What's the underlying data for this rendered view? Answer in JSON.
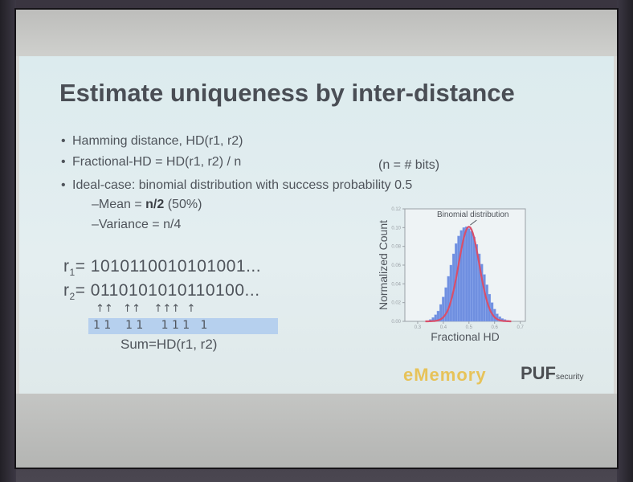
{
  "slide": {
    "title": "Estimate uniqueness by inter-distance",
    "bullets": {
      "hamming": "Hamming distance, HD(r1, r2)",
      "fractional": "Fractional-HD = HD(r1, r2) / n",
      "fractional_note": "(n = # bits)",
      "ideal": "Ideal-case: binomial distribution with success probability 0.5",
      "mean_prefix": "–Mean = ",
      "mean_bold": "n/2",
      "mean_suffix": "  (50%)",
      "variance": "–Variance = n/4"
    },
    "r1": {
      "label": "r",
      "sub": "1",
      "value": "= 1010110010101001..."
    },
    "r2": {
      "label": "r",
      "sub": "2",
      "value": "= 0110101010110100..."
    },
    "arrows": "↑↑   ↑↑    ↑↑↑  ↑",
    "ones": "1 1    1 1     1 1 1   1",
    "sum_label": "Sum=HD(r1, r2)",
    "logos": {
      "emem": "eMemory",
      "puf": "PUF",
      "puf_small": "security"
    }
  },
  "chart_data": {
    "type": "bar",
    "title": "",
    "annotation": "Binomial distribution",
    "xlabel": "Fractional HD",
    "ylabel": "Normalized Count",
    "xlim": [
      0.25,
      0.72
    ],
    "ylim": [
      0,
      0.12
    ],
    "xticks": [
      "0.3",
      "0.4",
      "0.5",
      "0.6",
      "0.7"
    ],
    "yticks": [
      "0.00",
      "0.02",
      "0.04",
      "0.06",
      "0.08",
      "0.10",
      "0.12"
    ],
    "x": [
      0.35,
      0.36,
      0.37,
      0.38,
      0.39,
      0.4,
      0.41,
      0.42,
      0.43,
      0.44,
      0.45,
      0.46,
      0.47,
      0.48,
      0.49,
      0.5,
      0.51,
      0.52,
      0.53,
      0.54,
      0.55,
      0.56,
      0.57,
      0.58,
      0.59,
      0.6,
      0.61,
      0.62,
      0.63,
      0.64,
      0.65
    ],
    "values": [
      0.002,
      0.004,
      0.007,
      0.011,
      0.018,
      0.026,
      0.036,
      0.048,
      0.06,
      0.072,
      0.083,
      0.091,
      0.097,
      0.1,
      0.101,
      0.099,
      0.096,
      0.09,
      0.082,
      0.072,
      0.061,
      0.05,
      0.039,
      0.029,
      0.02,
      0.013,
      0.008,
      0.005,
      0.003,
      0.002,
      0.001
    ],
    "colors": {
      "bars": "#6f8fe0",
      "curve": "#d94f6a"
    }
  }
}
